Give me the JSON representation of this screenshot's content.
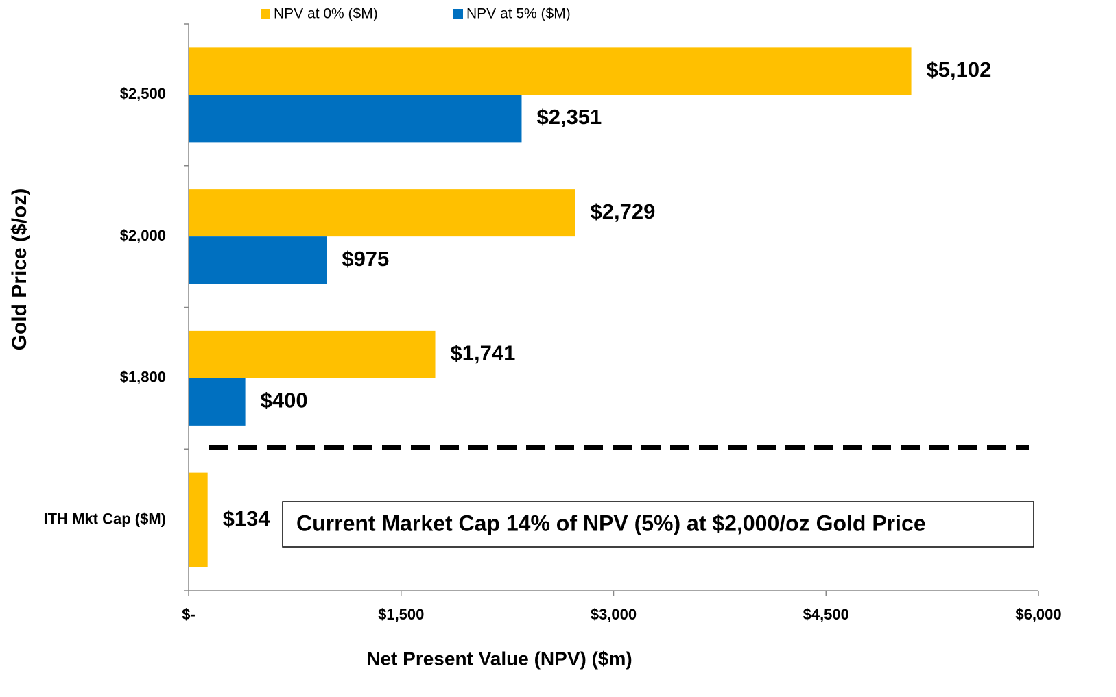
{
  "chart_data": {
    "type": "hbar",
    "categories": [
      "$2,500",
      "$2,000",
      "$1,800",
      "ITH Mkt Cap ($M)"
    ],
    "series": [
      {
        "name": "NPV at 0% ($M)",
        "color": "#ffc000",
        "values": [
          5102,
          2729,
          1741,
          134
        ],
        "value_labels": [
          "$5,102",
          "$2,729",
          "$1,741",
          "$134"
        ]
      },
      {
        "name": "NPV at 5% ($M)",
        "color": "#0070c0",
        "values": [
          2351,
          975,
          400,
          null
        ],
        "value_labels": [
          "$2,351",
          "$975",
          "$400",
          null
        ]
      }
    ],
    "xlim": [
      0,
      6000
    ],
    "xticks": [
      {
        "value": 0,
        "label": "$-"
      },
      {
        "value": 1500,
        "label": "$1,500"
      },
      {
        "value": 3000,
        "label": "$3,000"
      },
      {
        "value": 4500,
        "label": "$4,500"
      },
      {
        "value": 6000,
        "label": "$6,000"
      }
    ],
    "xlabel": "Net Present Value (NPV) ($m)",
    "ylabel": "Gold Price ($/oz)",
    "annotation": "Current Market Cap 14% of NPV (5%) at $2,000/oz Gold Price",
    "legend": "top"
  }
}
